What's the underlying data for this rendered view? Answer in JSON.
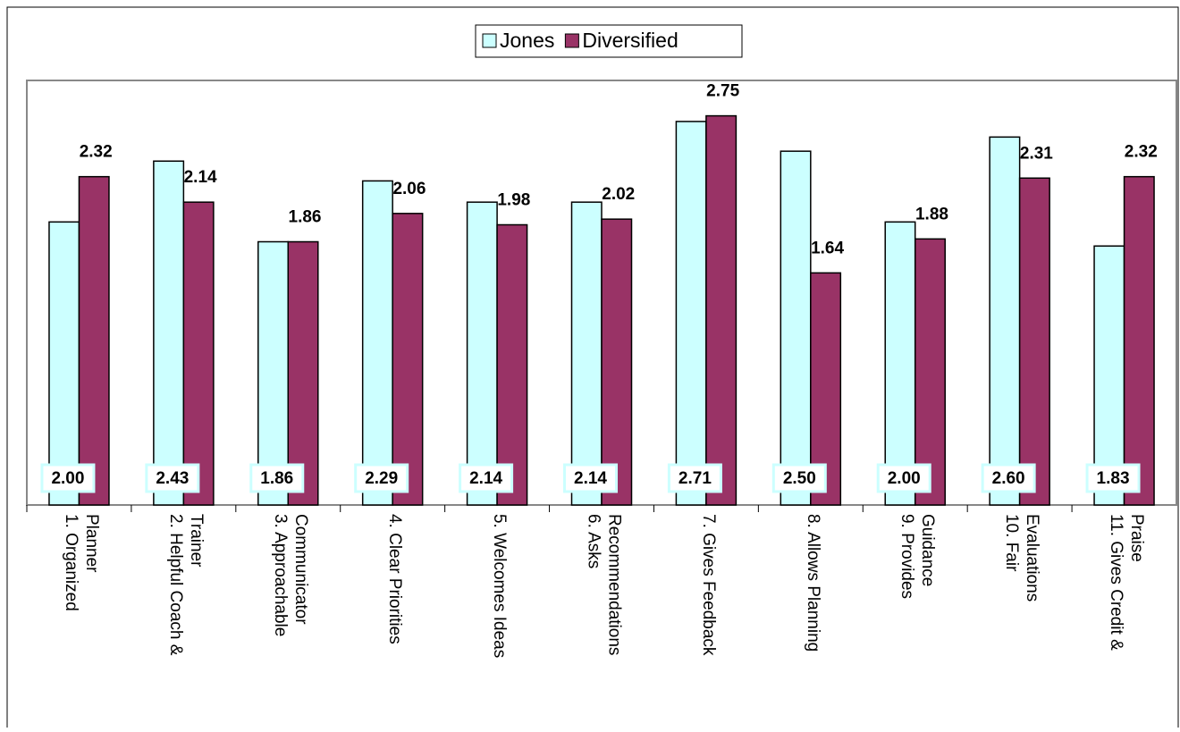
{
  "chart_data": {
    "type": "bar",
    "categories": [
      "1. Organized Planner",
      "2. Helpful Coach & Trainer",
      "3. Approachable Communicator",
      "4. Clear Priorities",
      "5. Welcomes Ideas",
      "6. Asks Recommendations",
      "7. Gives Feedback",
      "8. Allows Planning",
      "9. Provides Guidance",
      "10. Fair Evaluations",
      "11. Gives Credit & Praise"
    ],
    "series": [
      {
        "name": "Jones",
        "color": "#ccffff",
        "values": [
          2,
          2.43,
          1.86,
          2.29,
          2.14,
          2.14,
          2.71,
          2.5,
          2,
          2.6,
          1.83
        ],
        "value_labels": [
          "2.00",
          "2.43",
          "1.86",
          "2.29",
          "2.14",
          "2.14",
          "2.71",
          "2.50",
          "2.00",
          "2.60",
          "1.83"
        ]
      },
      {
        "name": "Diversified",
        "color": "#993366",
        "values": [
          2.32,
          2.14,
          1.86,
          2.06,
          1.98,
          2.02,
          2.75,
          1.64,
          1.88,
          2.31,
          2.32
        ]
      }
    ],
    "ylim": [
      0,
      3
    ],
    "legend": "top"
  }
}
